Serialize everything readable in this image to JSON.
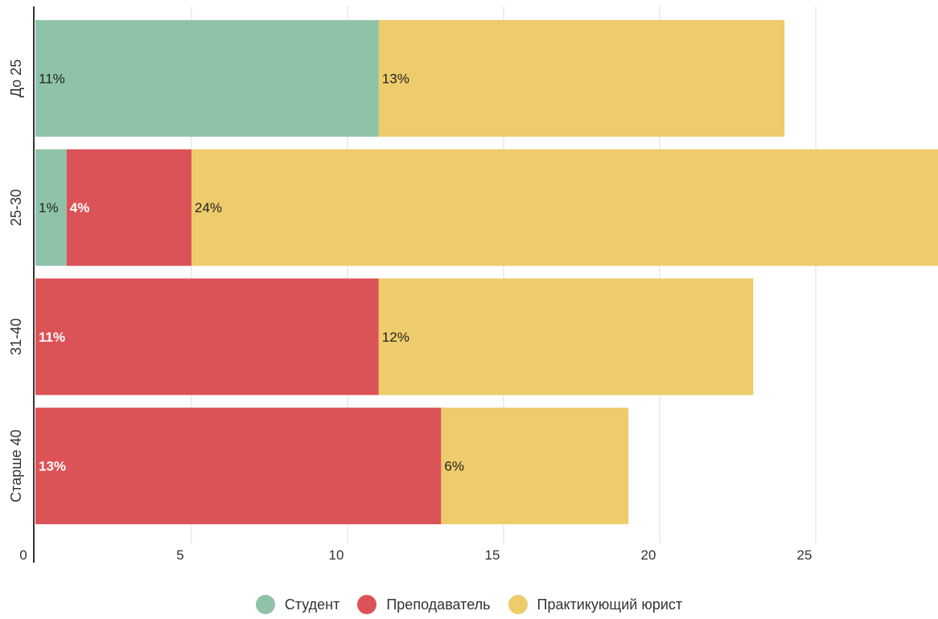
{
  "chart_data": {
    "type": "bar",
    "orientation": "horizontal",
    "stacked": true,
    "categories": [
      "До 25",
      "25-30",
      "31-40",
      "Старше 40"
    ],
    "series": [
      {
        "name": "Студент",
        "color": "#8fc3a8",
        "values": [
          11,
          1,
          0,
          0
        ],
        "labels": [
          "11%",
          "1%",
          "",
          ""
        ],
        "label_color": "#222222"
      },
      {
        "name": "Преподаватель",
        "color": "#dc5357",
        "values": [
          0,
          4,
          11,
          13
        ],
        "labels": [
          "",
          "4%",
          "11%",
          "13%"
        ],
        "label_color": "#ffffff"
      },
      {
        "name": "Практикующий юрист",
        "color": "#eecb6b",
        "values": [
          13,
          24,
          12,
          6
        ],
        "labels": [
          "13%",
          "24%",
          "12%",
          "6%"
        ],
        "label_color": "#222222"
      }
    ],
    "xlim": [
      0,
      29
    ],
    "xticks": [
      "0",
      "5",
      "10",
      "15",
      "20",
      "25"
    ],
    "grid": true,
    "legend": "bottom-center",
    "title": "",
    "xlabel": "",
    "ylabel": ""
  }
}
